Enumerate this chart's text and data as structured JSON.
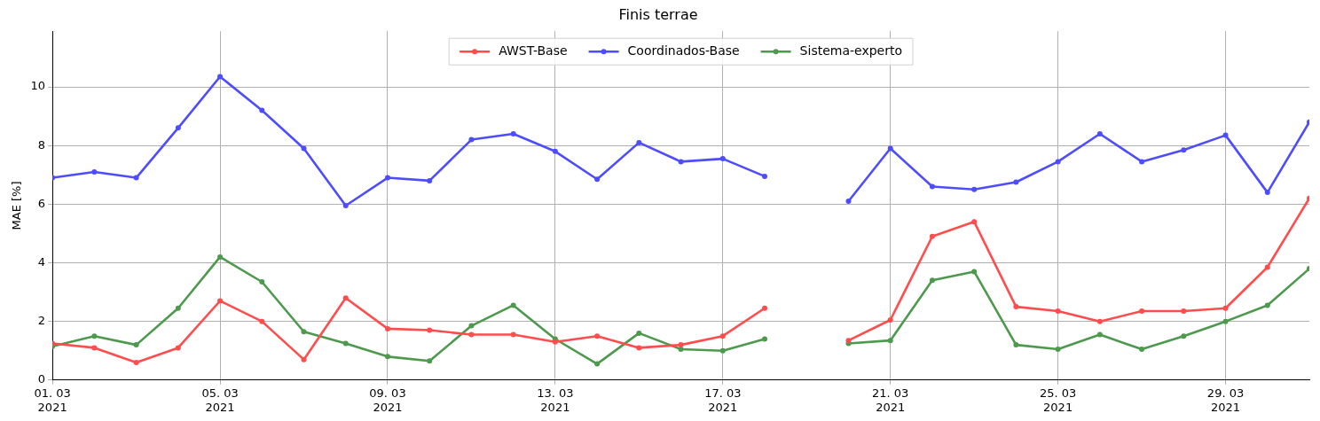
{
  "chart_data": {
    "type": "line",
    "title": "Finis terrae",
    "ylabel": "MAE [%]",
    "x": [
      "2021-03-01",
      "2021-03-02",
      "2021-03-03",
      "2021-03-04",
      "2021-03-05",
      "2021-03-06",
      "2021-03-07",
      "2021-03-08",
      "2021-03-09",
      "2021-03-10",
      "2021-03-11",
      "2021-03-12",
      "2021-03-13",
      "2021-03-14",
      "2021-03-15",
      "2021-03-16",
      "2021-03-17",
      "2021-03-18",
      "2021-03-19",
      "2021-03-20",
      "2021-03-21",
      "2021-03-22",
      "2021-03-23",
      "2021-03-24",
      "2021-03-25",
      "2021-03-26",
      "2021-03-27",
      "2021-03-28",
      "2021-03-29",
      "2021-03-30",
      "2021-03-31"
    ],
    "series": [
      {
        "name": "AWST-Base",
        "color": "#ff4d4d",
        "values": [
          1.25,
          1.1,
          0.6,
          1.1,
          2.7,
          2.0,
          0.7,
          2.8,
          1.75,
          1.7,
          1.55,
          1.55,
          1.3,
          1.5,
          1.1,
          1.2,
          1.5,
          2.45,
          null,
          1.35,
          2.05,
          4.9,
          5.4,
          2.5,
          2.35,
          2.0,
          2.35,
          2.35,
          2.45,
          3.85,
          6.2
        ]
      },
      {
        "name": "Coordinados-Base",
        "color": "#4d4dff",
        "values": [
          6.9,
          7.1,
          6.9,
          8.6,
          10.35,
          9.2,
          7.9,
          5.95,
          6.9,
          6.8,
          8.2,
          8.4,
          7.8,
          6.85,
          8.1,
          7.45,
          7.55,
          6.95,
          null,
          6.1,
          7.9,
          6.6,
          6.5,
          6.75,
          7.45,
          8.4,
          7.45,
          7.85,
          8.35,
          6.4,
          8.8
        ]
      },
      {
        "name": "Sistema-experto",
        "color": "#4d994d",
        "values": [
          1.15,
          1.5,
          1.2,
          2.45,
          4.2,
          3.35,
          1.65,
          1.25,
          0.8,
          0.65,
          1.85,
          2.55,
          1.4,
          0.55,
          1.6,
          1.05,
          1.0,
          1.4,
          null,
          1.25,
          1.35,
          3.4,
          3.7,
          1.2,
          1.05,
          1.55,
          1.05,
          1.5,
          2.0,
          2.55,
          3.8
        ]
      }
    ],
    "xlim": [
      "2021-03-01",
      "2021-03-31"
    ],
    "xticks": [
      {
        "value": "2021-03-01",
        "label": "01. 03\n2021"
      },
      {
        "value": "2021-03-05",
        "label": "05. 03\n2021"
      },
      {
        "value": "2021-03-09",
        "label": "09. 03\n2021"
      },
      {
        "value": "2021-03-13",
        "label": "13. 03\n2021"
      },
      {
        "value": "2021-03-17",
        "label": "17. 03\n2021"
      },
      {
        "value": "2021-03-21",
        "label": "21. 03\n2021"
      },
      {
        "value": "2021-03-25",
        "label": "25. 03\n2021"
      },
      {
        "value": "2021-03-29",
        "label": "29. 03\n2021"
      }
    ],
    "ylim": [
      0,
      11.9
    ],
    "yticks": [
      0,
      2,
      4,
      6,
      8,
      10
    ],
    "grid": true,
    "legend": "top",
    "marker": "circle",
    "line_style": "solid"
  }
}
